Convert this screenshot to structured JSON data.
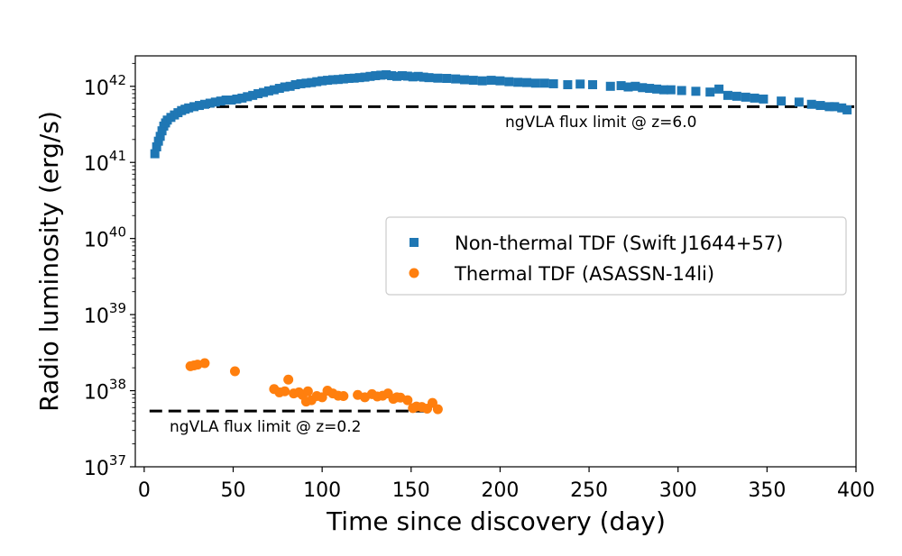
{
  "chart_data": {
    "type": "scatter",
    "title": "",
    "xlabel": "Time since discovery (day)",
    "ylabel": "Radio luminosity (erg/s)",
    "xlim": [
      -5,
      400
    ],
    "ylim_log10": [
      37,
      42.4
    ],
    "yscale": "log",
    "x_ticks": [
      0,
      50,
      100,
      150,
      200,
      250,
      300,
      350,
      400
    ],
    "x_tick_labels": [
      "0",
      "50",
      "100",
      "150",
      "200",
      "250",
      "300",
      "350",
      "400"
    ],
    "y_ticks_exp": [
      37,
      38,
      39,
      40,
      41,
      42
    ],
    "y_tick_base": "10",
    "y_tick_exps": [
      "37",
      "38",
      "39",
      "40",
      "41",
      "42"
    ],
    "colors": {
      "nonthermal": "#1f77b4",
      "thermal": "#ff7f0e",
      "limit_line": "#000000"
    },
    "legend": {
      "location": "center-right",
      "entries": [
        "Non-thermal TDF (Swift J1644+57)",
        "Thermal TDF (ASASSN-14li)"
      ]
    },
    "series": [
      {
        "name": "Non-thermal TDF (Swift J1644+57)",
        "marker": "square",
        "x": [
          6,
          7,
          8,
          9,
          10,
          11,
          12,
          13,
          15,
          17,
          19,
          21,
          23,
          25,
          28,
          31,
          34,
          37,
          40,
          43,
          46,
          49,
          52,
          55,
          58,
          61,
          64,
          67,
          70,
          73,
          76,
          79,
          82,
          85,
          88,
          91,
          94,
          97,
          100,
          103,
          106,
          109,
          112,
          115,
          118,
          121,
          124,
          127,
          130,
          133,
          136,
          139,
          142,
          145,
          148,
          151,
          154,
          157,
          160,
          165,
          170,
          175,
          180,
          185,
          190,
          195,
          200,
          205,
          210,
          215,
          220,
          225,
          230,
          238,
          245,
          252,
          262,
          268,
          272,
          276,
          280,
          284,
          288,
          292,
          296,
          302,
          310,
          318,
          323,
          328,
          333,
          338,
          343,
          348,
          358,
          368,
          375,
          380,
          385,
          388,
          392,
          395
        ],
        "y": [
          1.3e+41,
          1.6e+41,
          1.9e+41,
          2.2e+41,
          2.6e+41,
          3e+41,
          3.3e+41,
          3.6e+41,
          3.9e+41,
          4.2e+41,
          4.5e+41,
          4.8e+41,
          5e+41,
          5.2e+41,
          5.4e+41,
          5.6e+41,
          5.8e+41,
          6e+41,
          6.2e+41,
          6.4e+41,
          6.6e+41,
          6.6e+41,
          6.8e+41,
          7e+41,
          7.3e+41,
          7.6e+41,
          8e+41,
          8.3e+41,
          8.7e+41,
          9e+41,
          9.4e+41,
          9.8e+41,
          1e+42,
          1.05e+42,
          1.08e+42,
          1.1e+42,
          1.12e+42,
          1.15e+42,
          1.18e+42,
          1.2e+42,
          1.22e+42,
          1.23e+42,
          1.25e+42,
          1.27e+42,
          1.28e+42,
          1.3e+42,
          1.32e+42,
          1.35e+42,
          1.38e+42,
          1.4e+42,
          1.42e+42,
          1.38e+42,
          1.35e+42,
          1.38e+42,
          1.36e+42,
          1.33e+42,
          1.35e+42,
          1.32e+42,
          1.3e+42,
          1.28e+42,
          1.27e+42,
          1.25e+42,
          1.22e+42,
          1.2e+42,
          1.18e+42,
          1.2e+42,
          1.18e+42,
          1.15e+42,
          1.13e+42,
          1.12e+42,
          1.1e+42,
          1.1e+42,
          1.08e+42,
          1.05e+42,
          1.07e+42,
          1.05e+42,
          1e+42,
          1.02e+42,
          9.8e+41,
          1e+42,
          9.6e+41,
          9.4e+41,
          9.2e+41,
          9e+41,
          9e+41,
          8.8e+41,
          8.6e+41,
          8.4e+41,
          9.2e+41,
          7.6e+41,
          7.4e+41,
          7.2e+41,
          7e+41,
          6.8e+41,
          6.4e+41,
          6.2e+41,
          5.8e+41,
          5.6e+41,
          5.4e+41,
          5.4e+41,
          5.2e+41,
          4.9e+41
        ]
      },
      {
        "name": "Thermal TDF (ASASSN-14li)",
        "marker": "circle",
        "x": [
          26,
          28,
          30,
          34,
          51,
          73,
          76,
          79,
          81,
          84,
          87,
          89,
          91,
          92,
          94,
          97,
          100,
          103,
          106,
          109,
          112,
          120,
          124,
          128,
          131,
          134,
          137,
          140,
          142,
          144,
          148,
          151,
          153,
          156,
          159,
          162,
          165
        ],
        "y": [
          2.1e+38,
          2.15e+38,
          2.2e+38,
          2.3e+38,
          1.8e+38,
          1.05e+38,
          9.5e+37,
          9.8e+37,
          1.4e+38,
          9.2e+37,
          9.5e+37,
          8.8e+37,
          7.2e+37,
          9.8e+37,
          7.5e+37,
          8.5e+37,
          8.2e+37,
          1e+38,
          9.2e+37,
          8.6e+37,
          8.5e+37,
          8.8e+37,
          8.2e+37,
          9e+37,
          8.4e+37,
          8.6e+37,
          9.2e+37,
          7.8e+37,
          8.2e+37,
          8.1e+37,
          7.5e+37,
          5.9e+37,
          6.2e+37,
          6.1e+37,
          5.8e+37,
          6.9e+37,
          5.7e+37
        ]
      }
    ],
    "reference_lines": [
      {
        "label": "ngVLA flux limit @ z=6.0",
        "y": 5.4e+41,
        "x_start": 30,
        "x_end": 400
      },
      {
        "label": "ngVLA flux limit @ z=0.2",
        "y": 5.4e+37,
        "x_start": 3,
        "x_end": 160
      }
    ]
  }
}
